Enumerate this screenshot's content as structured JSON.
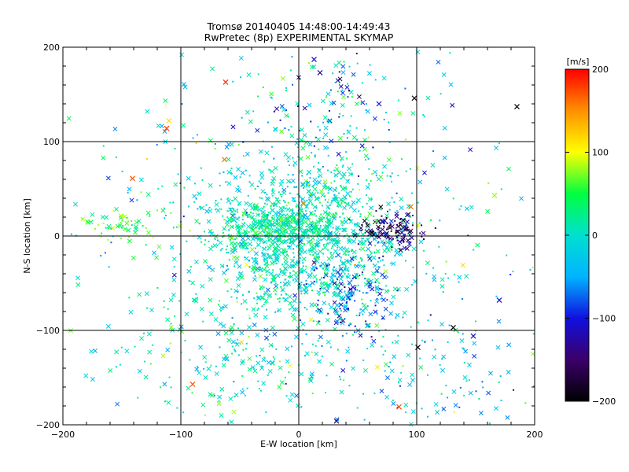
{
  "chart_data": {
    "type": "scatter",
    "title": "Tromsø 20140405 14:48:00-14:49:43",
    "subtitle": "RwPretec (8p) EXPERIMENTAL SKYMAP",
    "xlabel": "E-W location [km]",
    "ylabel": "N-S location [km]",
    "xlim": [
      -200,
      200
    ],
    "ylim": [
      -200,
      200
    ],
    "x_ticks": [
      -200,
      -100,
      0,
      100,
      200
    ],
    "y_ticks": [
      -200,
      -100,
      0,
      100,
      200
    ],
    "grid_lines": [
      -100,
      0,
      100
    ],
    "markers": [
      "x",
      "dot"
    ],
    "colorbar": {
      "label": "[m/s]",
      "min": -200,
      "max": 200,
      "ticks": [
        200,
        100,
        0,
        -100,
        -200
      ],
      "colormap": [
        "#000000",
        "#3b006a",
        "#1010e0",
        "#00b4ff",
        "#00e0d0",
        "#00ff40",
        "#ffff00",
        "#ff9000",
        "#ff0000"
      ]
    },
    "clusters": [
      {
        "cx": 0,
        "cy": 0,
        "sx": 40,
        "sy": 45,
        "n": 1150,
        "v": 5,
        "sv": 30
      },
      {
        "cx": -20,
        "cy": 10,
        "sx": 25,
        "sy": 12,
        "n": 240,
        "v": 25,
        "sv": 20
      },
      {
        "cx": 80,
        "cy": 5,
        "sx": 14,
        "sy": 10,
        "n": 130,
        "v": -150,
        "sv": 35
      },
      {
        "cx": 45,
        "cy": -60,
        "sx": 22,
        "sy": 22,
        "n": 160,
        "v": -80,
        "sv": 40
      },
      {
        "cx": -150,
        "cy": 15,
        "sx": 18,
        "sy": 10,
        "n": 55,
        "v": 55,
        "sv": 25
      },
      {
        "cx": 30,
        "cy": 135,
        "sx": 30,
        "sy": 35,
        "n": 90,
        "v": -40,
        "sv": 60
      },
      {
        "cx": -60,
        "cy": -130,
        "sx": 45,
        "sy": 35,
        "n": 170,
        "v": 10,
        "sv": 40
      },
      {
        "cx": 110,
        "cy": -150,
        "sx": 50,
        "sy": 35,
        "n": 130,
        "v": -20,
        "sv": 40
      },
      {
        "cx": 0,
        "cy": 0,
        "sx": 95,
        "sy": 95,
        "n": 480,
        "v": -5,
        "sv": 45
      }
    ],
    "highlighted_points": [
      {
        "x": -62,
        "y": 163,
        "v": 185
      },
      {
        "x": -112,
        "y": 114,
        "v": 180
      },
      {
        "x": -141,
        "y": 61,
        "v": 170
      },
      {
        "x": -63,
        "y": 81,
        "v": 160
      },
      {
        "x": -90,
        "y": -157,
        "v": 170
      },
      {
        "x": 85,
        "y": -181,
        "v": 175
      },
      {
        "x": 95,
        "y": 31,
        "v": 160
      },
      {
        "x": 4,
        "y": 34,
        "v": 150
      },
      {
        "x": -110,
        "y": 122,
        "v": 115
      },
      {
        "x": 166,
        "y": 43,
        "v": 80
      },
      {
        "x": 13,
        "y": 187,
        "v": -110
      },
      {
        "x": 18,
        "y": 173,
        "v": -120
      },
      {
        "x": 68,
        "y": 140,
        "v": -105
      },
      {
        "x": 98,
        "y": 146,
        "v": -190
      },
      {
        "x": 170,
        "y": -68,
        "v": -100
      },
      {
        "x": 148,
        "y": -106,
        "v": -110
      },
      {
        "x": 101,
        "y": -118,
        "v": -190
      },
      {
        "x": 32,
        "y": -196,
        "v": -140
      },
      {
        "x": 185,
        "y": 137,
        "v": -200
      },
      {
        "x": 131,
        "y": -97,
        "v": -200
      }
    ]
  }
}
